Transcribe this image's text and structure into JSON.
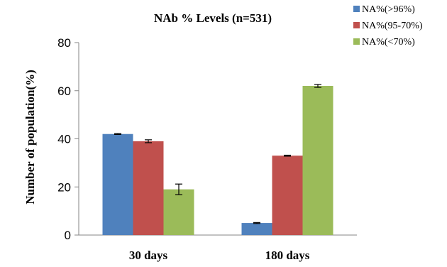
{
  "chart_data": {
    "type": "bar",
    "title": "NAb % Levels (n=531)",
    "xlabel": "",
    "ylabel": "Number of population(%)",
    "categories": [
      "30 days",
      "180 days"
    ],
    "ylim": [
      0,
      80
    ],
    "yticks": [
      0,
      20,
      40,
      60,
      80
    ],
    "grid": false,
    "legend_position": "top-right",
    "series": [
      {
        "name": "NA%(>96%)",
        "values": [
          42,
          5
        ],
        "errors": [
          0.2,
          0.2
        ],
        "color": "#4F81BD"
      },
      {
        "name": "NA%(95-70%)",
        "values": [
          39,
          33
        ],
        "errors": [
          0.6,
          0.2
        ],
        "color": "#C0504D"
      },
      {
        "name": "NA%(<70%)",
        "values": [
          19,
          62
        ],
        "errors": [
          2.2,
          0.6
        ],
        "color": "#9BBB59"
      }
    ]
  }
}
